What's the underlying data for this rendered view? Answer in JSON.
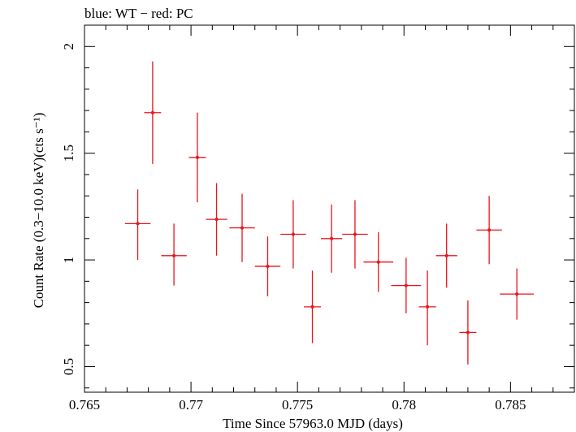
{
  "chart_data": {
    "type": "scatter",
    "title": "blue: WT − red: PC",
    "xlabel": "Time Since 57963.0 MJD (days)",
    "ylabel": "Count Rate (0.3−10.0 keV)(cts s⁻¹)",
    "xlim": [
      0.765,
      0.788
    ],
    "ylim": [
      0.38,
      2.1
    ],
    "x_ticks": [
      "0.765",
      "0.77",
      "0.775",
      "0.78",
      "0.785"
    ],
    "y_ticks": [
      "0.5",
      "1",
      "1.5",
      "2"
    ],
    "grid": false,
    "series": [
      {
        "name": "PC",
        "color": "#e8141c",
        "points": [
          {
            "x": 0.7675,
            "y": 1.17,
            "xerr": 0.0006,
            "yerr_lo": 0.17,
            "yerr_hi": 0.16
          },
          {
            "x": 0.7682,
            "y": 1.69,
            "xerr": 0.0004,
            "yerr_lo": 0.24,
            "yerr_hi": 0.24
          },
          {
            "x": 0.7692,
            "y": 1.02,
            "xerr": 0.0006,
            "yerr_lo": 0.14,
            "yerr_hi": 0.15
          },
          {
            "x": 0.7703,
            "y": 1.48,
            "xerr": 0.0004,
            "yerr_lo": 0.21,
            "yerr_hi": 0.21
          },
          {
            "x": 0.7712,
            "y": 1.19,
            "xerr": 0.0005,
            "yerr_lo": 0.17,
            "yerr_hi": 0.17
          },
          {
            "x": 0.7724,
            "y": 1.15,
            "xerr": 0.0006,
            "yerr_lo": 0.16,
            "yerr_hi": 0.16
          },
          {
            "x": 0.7736,
            "y": 0.97,
            "xerr": 0.0006,
            "yerr_lo": 0.14,
            "yerr_hi": 0.14
          },
          {
            "x": 0.7748,
            "y": 1.12,
            "xerr": 0.0006,
            "yerr_lo": 0.16,
            "yerr_hi": 0.16
          },
          {
            "x": 0.7757,
            "y": 0.78,
            "xerr": 0.0004,
            "yerr_lo": 0.17,
            "yerr_hi": 0.17
          },
          {
            "x": 0.7766,
            "y": 1.1,
            "xerr": 0.0005,
            "yerr_lo": 0.16,
            "yerr_hi": 0.16
          },
          {
            "x": 0.7777,
            "y": 1.12,
            "xerr": 0.0006,
            "yerr_lo": 0.16,
            "yerr_hi": 0.16
          },
          {
            "x": 0.7788,
            "y": 0.99,
            "xerr": 0.0007,
            "yerr_lo": 0.14,
            "yerr_hi": 0.14
          },
          {
            "x": 0.7801,
            "y": 0.88,
            "xerr": 0.0007,
            "yerr_lo": 0.13,
            "yerr_hi": 0.13
          },
          {
            "x": 0.7811,
            "y": 0.78,
            "xerr": 0.0004,
            "yerr_lo": 0.18,
            "yerr_hi": 0.17
          },
          {
            "x": 0.782,
            "y": 1.02,
            "xerr": 0.0005,
            "yerr_lo": 0.15,
            "yerr_hi": 0.15
          },
          {
            "x": 0.783,
            "y": 0.66,
            "xerr": 0.0004,
            "yerr_lo": 0.15,
            "yerr_hi": 0.15
          },
          {
            "x": 0.784,
            "y": 1.14,
            "xerr": 0.0006,
            "yerr_lo": 0.16,
            "yerr_hi": 0.16
          },
          {
            "x": 0.7853,
            "y": 0.84,
            "xerr": 0.0008,
            "yerr_lo": 0.12,
            "yerr_hi": 0.12
          }
        ]
      }
    ]
  }
}
